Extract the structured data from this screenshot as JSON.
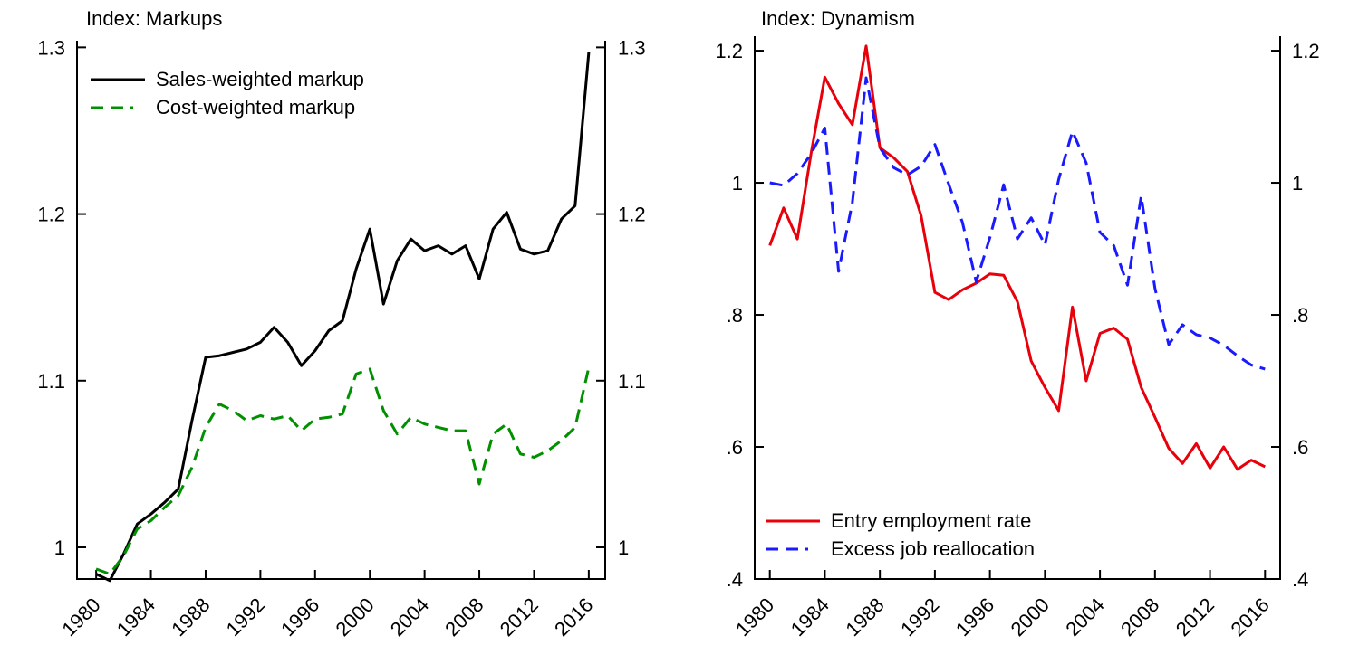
{
  "page": {
    "background": "#ffffff",
    "axis_color": "#000000",
    "text_color": "#000000"
  },
  "chart_data": [
    {
      "type": "line",
      "title": "Index: Markups",
      "xlabel": "",
      "ylabel": "",
      "x": [
        1980,
        1981,
        1982,
        1983,
        1984,
        1985,
        1986,
        1987,
        1988,
        1989,
        1990,
        1991,
        1992,
        1993,
        1994,
        1995,
        1996,
        1997,
        1998,
        1999,
        2000,
        2001,
        2002,
        2003,
        2004,
        2005,
        2006,
        2007,
        2008,
        2009,
        2010,
        2011,
        2012,
        2013,
        2014,
        2015,
        2016
      ],
      "x_tick_values": [
        1980,
        1984,
        1988,
        1992,
        1996,
        2000,
        2004,
        2008,
        2012,
        2016
      ],
      "x_tick_labels": [
        "1980",
        "1984",
        "1988",
        "1992",
        "1996",
        "2000",
        "2004",
        "2008",
        "2012",
        "2016"
      ],
      "y_tick_values": [
        1.0,
        1.1,
        1.2,
        1.3
      ],
      "y_tick_labels": [
        "1",
        "1.1",
        "1.2",
        "1.3"
      ],
      "xlim": [
        1978.6,
        2017.2
      ],
      "ylim": [
        0.981,
        1.304
      ],
      "grid": false,
      "legend_position": "top-left-inside",
      "series": [
        {
          "name": "Sales-weighted markup",
          "color": "#000000",
          "line_style": "solid",
          "values": [
            0.984,
            0.98,
            0.996,
            1.014,
            1.02,
            1.027,
            1.035,
            1.076,
            1.114,
            1.115,
            1.117,
            1.119,
            1.123,
            1.132,
            1.123,
            1.109,
            1.118,
            1.13,
            1.136,
            1.167,
            1.191,
            1.146,
            1.172,
            1.185,
            1.178,
            1.181,
            1.176,
            1.181,
            1.161,
            1.191,
            1.201,
            1.179,
            1.176,
            1.178,
            1.197,
            1.205,
            1.297
          ]
        },
        {
          "name": "Cost-weighted markup",
          "color": "#009000",
          "line_style": "dashed",
          "values": [
            0.987,
            0.984,
            0.995,
            1.011,
            1.016,
            1.024,
            1.031,
            1.048,
            1.072,
            1.086,
            1.082,
            1.076,
            1.079,
            1.077,
            1.079,
            1.07,
            1.077,
            1.078,
            1.08,
            1.104,
            1.107,
            1.082,
            1.068,
            1.078,
            1.074,
            1.072,
            1.07,
            1.07,
            1.038,
            1.068,
            1.074,
            1.056,
            1.054,
            1.058,
            1.064,
            1.072,
            1.108
          ]
        }
      ]
    },
    {
      "type": "line",
      "title": "Index: Dynamism",
      "xlabel": "",
      "ylabel": "",
      "x": [
        1980,
        1981,
        1982,
        1983,
        1984,
        1985,
        1986,
        1987,
        1988,
        1989,
        1990,
        1991,
        1992,
        1993,
        1994,
        1995,
        1996,
        1997,
        1998,
        1999,
        2000,
        2001,
        2002,
        2003,
        2004,
        2005,
        2006,
        2007,
        2008,
        2009,
        2010,
        2011,
        2012,
        2013,
        2014,
        2015,
        2016
      ],
      "x_tick_values": [
        1980,
        1984,
        1988,
        1992,
        1996,
        2000,
        2004,
        2008,
        2012,
        2016
      ],
      "x_tick_labels": [
        "1980",
        "1984",
        "1988",
        "1992",
        "1996",
        "2000",
        "2004",
        "2008",
        "2012",
        "2016"
      ],
      "y_tick_values": [
        0.4,
        0.6,
        0.8,
        1.0,
        1.2
      ],
      "y_tick_labels": [
        ".4",
        ".6",
        ".8",
        "1",
        "1.2"
      ],
      "xlim": [
        1978.9,
        2017.1
      ],
      "ylim": [
        0.4,
        1.222
      ],
      "grid": false,
      "legend_position": "bottom-left-inside",
      "series": [
        {
          "name": "Entry employment rate",
          "color": "#e8000b",
          "line_style": "solid",
          "values": [
            0.905,
            0.962,
            0.915,
            1.045,
            1.16,
            1.12,
            1.088,
            1.207,
            1.053,
            1.038,
            1.017,
            0.95,
            0.834,
            0.823,
            0.838,
            0.848,
            0.862,
            0.86,
            0.82,
            0.73,
            0.69,
            0.655,
            0.812,
            0.7,
            0.772,
            0.78,
            0.763,
            0.69,
            0.645,
            0.598,
            0.575,
            0.605,
            0.568,
            0.6,
            0.566,
            0.58,
            0.57
          ]
        },
        {
          "name": "Excess job reallocation",
          "color": "#1a1aff",
          "line_style": "dashed",
          "values": [
            1.0,
            0.996,
            1.014,
            1.044,
            1.083,
            0.866,
            0.97,
            1.159,
            1.053,
            1.023,
            1.012,
            1.025,
            1.058,
            0.998,
            0.94,
            0.85,
            0.917,
            0.997,
            0.915,
            0.947,
            0.906,
            1.005,
            1.078,
            1.03,
            0.925,
            0.905,
            0.845,
            0.98,
            0.84,
            0.755,
            0.785,
            0.77,
            0.765,
            0.754,
            0.738,
            0.724,
            0.718
          ]
        }
      ]
    }
  ]
}
